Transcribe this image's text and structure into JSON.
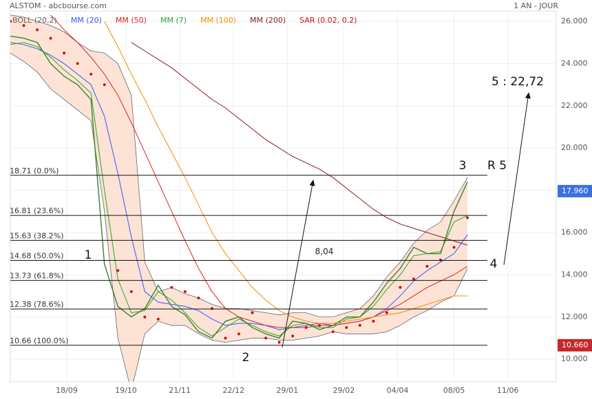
{
  "chart_data": {
    "type": "line",
    "title": "ALSTOM - abcbourse.com",
    "period": "1 AN - JOUR",
    "x": [
      0,
      5,
      10,
      15,
      20,
      25,
      30,
      35,
      40,
      45,
      50,
      55,
      60,
      65,
      70,
      75,
      80,
      85,
      90,
      95,
      100,
      105,
      110,
      115,
      120,
      125,
      130,
      135,
      140,
      145,
      150,
      155,
      160,
      165,
      170
    ],
    "xlim": [
      0,
      203
    ],
    "xticks": [
      {
        "value": 21,
        "label": "18/09"
      },
      {
        "value": 43,
        "label": "19/10"
      },
      {
        "value": 63,
        "label": "21/11"
      },
      {
        "value": 83,
        "label": "22/12"
      },
      {
        "value": 103,
        "label": "29/01"
      },
      {
        "value": 124,
        "label": "29/02"
      },
      {
        "value": 144,
        "label": "04/04"
      },
      {
        "value": 165,
        "label": "08/05"
      },
      {
        "value": 185,
        "label": "11/06"
      }
    ],
    "ylim": [
      8.93,
      26.49
    ],
    "yticks": [
      {
        "value": 10,
        "label": "10.000"
      },
      {
        "value": 12,
        "label": "12.000"
      },
      {
        "value": 14,
        "label": "14.000"
      },
      {
        "value": 16,
        "label": "16.000"
      },
      {
        "value": 18,
        "label": "18.000"
      },
      {
        "value": 20,
        "label": "20.000"
      },
      {
        "value": 22,
        "label": "22.000"
      },
      {
        "value": 24,
        "label": "24.000"
      },
      {
        "value": 26,
        "label": "26.000"
      }
    ],
    "price": {
      "color": "#3d7f2f",
      "values": [
        25.3,
        25.2,
        25.0,
        24.0,
        23.4,
        23.0,
        22.3,
        14.5,
        12.5,
        12.0,
        12.4,
        13.5,
        12.5,
        12.1,
        11.3,
        11.0,
        11.8,
        12.0,
        11.5,
        11.2,
        11.0,
        11.8,
        11.7,
        11.4,
        11.6,
        12.0,
        12.0,
        12.7,
        13.6,
        14.3,
        15.3,
        15.0,
        15.0,
        17.0,
        18.4
      ]
    },
    "series": [
      {
        "name": "BOLL (20,2)",
        "color": "#666666",
        "fill": "#fde3d6",
        "upper": [
          26.3,
          26.2,
          26.0,
          25.8,
          25.5,
          25.0,
          24.6,
          24.5,
          24.0,
          22.5,
          14.6,
          13.2,
          13.4,
          13.1,
          12.9,
          12.6,
          12.4,
          12.4,
          12.3,
          12.2,
          12.1,
          12.2,
          12.2,
          12.0,
          12.0,
          12.2,
          12.4,
          13.0,
          13.9,
          14.6,
          15.5,
          16.1,
          16.5,
          17.5,
          18.6
        ],
        "lower": [
          24.5,
          24.1,
          23.6,
          22.8,
          22.3,
          21.8,
          21.3,
          17.0,
          11.0,
          8.5,
          11.2,
          11.8,
          11.6,
          11.6,
          11.2,
          10.9,
          10.8,
          10.9,
          11.0,
          11.0,
          10.9,
          10.9,
          11.0,
          11.1,
          11.3,
          11.2,
          11.2,
          11.2,
          11.3,
          11.6,
          12.0,
          12.3,
          12.7,
          13.0,
          14.3
        ]
      },
      {
        "name": "MM (20)",
        "color": "#3355ff",
        "values": [
          25.0,
          24.9,
          24.7,
          24.4,
          24.0,
          23.5,
          23.0,
          21.5,
          18.8,
          15.8,
          13.2,
          12.7,
          12.6,
          12.5,
          12.3,
          11.9,
          11.6,
          11.7,
          11.7,
          11.6,
          11.4,
          11.5,
          11.6,
          11.7,
          11.6,
          11.7,
          11.8,
          12.0,
          12.4,
          13.0,
          13.7,
          14.2,
          14.6,
          15.0,
          15.9
        ]
      },
      {
        "name": "MM (50)",
        "color": "#dd2222",
        "values": [
          null,
          null,
          null,
          26.3,
          25.6,
          25.0,
          24.3,
          23.5,
          22.5,
          21.2,
          19.8,
          18.4,
          17.0,
          15.6,
          14.3,
          13.2,
          12.4,
          12.0,
          11.8,
          11.6,
          11.5,
          11.5,
          11.5,
          11.6,
          11.6,
          11.7,
          11.8,
          12.0,
          12.3,
          12.6,
          13.0,
          13.4,
          13.7,
          14.0,
          14.4
        ]
      },
      {
        "name": "MM (7)",
        "color": "#22aa22",
        "values": [
          24.9,
          25.0,
          24.8,
          24.3,
          23.7,
          23.2,
          22.6,
          18.0,
          13.8,
          12.2,
          12.3,
          13.2,
          12.8,
          12.2,
          11.5,
          11.1,
          11.5,
          11.9,
          11.6,
          11.3,
          11.1,
          11.6,
          11.7,
          11.5,
          11.5,
          11.9,
          12.0,
          12.5,
          13.3,
          14.0,
          14.9,
          15.0,
          15.1,
          16.5,
          16.8
        ]
      },
      {
        "name": "MM (100)",
        "color": "#ff8800",
        "values": [
          null,
          null,
          null,
          null,
          null,
          null,
          null,
          26.0,
          24.8,
          23.5,
          22.3,
          21.0,
          19.8,
          18.6,
          17.3,
          16.0,
          15.0,
          14.2,
          13.4,
          12.8,
          12.3,
          12.0,
          11.8,
          11.7,
          11.7,
          11.8,
          11.9,
          12.0,
          12.1,
          12.2,
          12.4,
          12.6,
          12.8,
          13.0,
          13.0
        ]
      },
      {
        "name": "MM (200)",
        "color": "#8b1a1a",
        "values": [
          null,
          null,
          null,
          null,
          null,
          null,
          null,
          null,
          null,
          25.0,
          24.6,
          24.2,
          23.8,
          23.3,
          22.8,
          22.3,
          21.9,
          21.4,
          20.9,
          20.4,
          20.0,
          19.6,
          19.3,
          19.0,
          18.6,
          18.1,
          17.6,
          17.1,
          16.7,
          16.4,
          16.2,
          16.0,
          15.8,
          15.6,
          15.4
        ]
      },
      {
        "name": "SAR (0.02, 0.2)",
        "color": "#cc1111",
        "marker": "dot",
        "values": [
          26.0,
          25.8,
          25.6,
          25.2,
          24.5,
          24.0,
          23.5,
          23.0,
          14.2,
          13.2,
          12.0,
          11.9,
          13.4,
          13.2,
          12.9,
          12.4,
          11.0,
          11.2,
          12.2,
          11.0,
          10.8,
          11.1,
          11.5,
          11.6,
          11.3,
          11.5,
          11.6,
          11.8,
          12.2,
          13.4,
          13.8,
          14.4,
          14.7,
          15.3,
          16.7
        ]
      }
    ],
    "levels": [
      {
        "value": 18.71,
        "label": "18.71 (0.0%)"
      },
      {
        "value": 16.81,
        "label": "16.81 (23.6%)"
      },
      {
        "value": 15.63,
        "label": "15.63 (38.2%)"
      },
      {
        "value": 14.68,
        "label": "14.68 (50.0%)"
      },
      {
        "value": 13.73,
        "label": "13.73 (61.8%)"
      },
      {
        "value": 12.38,
        "label": "12.38 (78.6%)"
      },
      {
        "value": 10.66,
        "label": "10.66 (100.0%)"
      }
    ],
    "last_price": {
      "value": 17.96,
      "label": "17.960",
      "color": "#3b6fe0"
    },
    "low_price": {
      "value": 10.66,
      "label": "10.660",
      "color": "#c62828"
    },
    "annotations": [
      "1",
      "2",
      "3",
      "R 5",
      "4",
      "5 : 22,72",
      "8,04"
    ],
    "grid": true
  }
}
